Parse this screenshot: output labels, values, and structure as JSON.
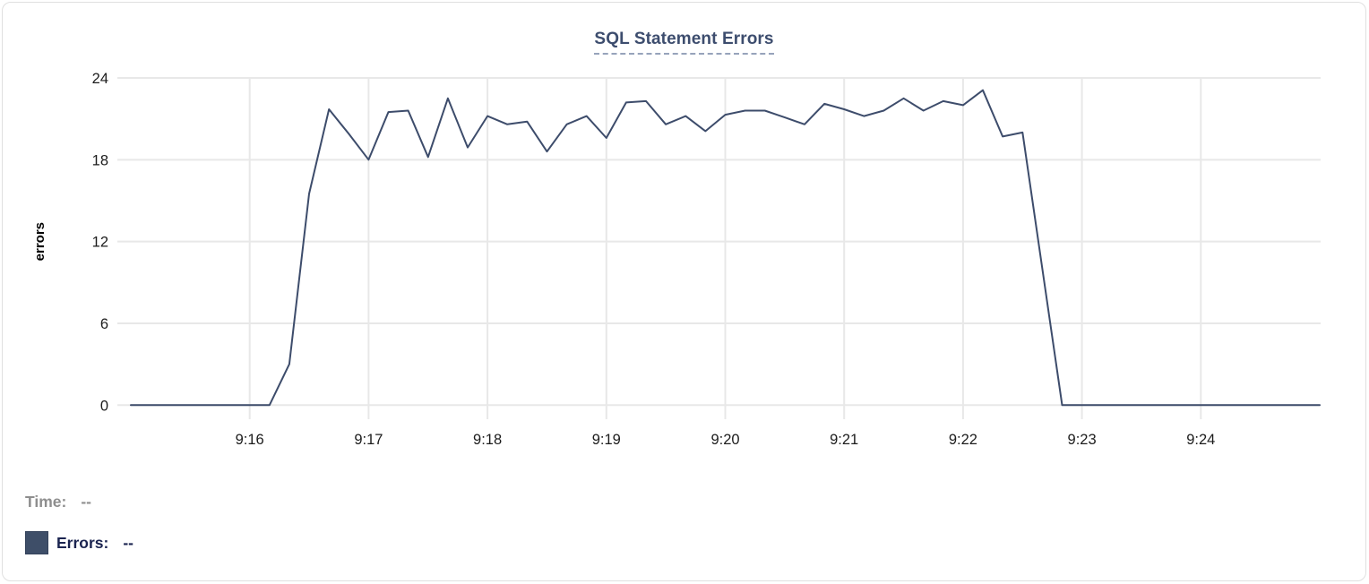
{
  "title": {
    "text": "SQL Statement Errors"
  },
  "colors": {
    "line": "#3d4c6b",
    "title": "#3d4d6e",
    "title_underline": "#97a3bb",
    "grid": "#e8e8e8",
    "tick_text": "#1c1c1c",
    "axis_label": "#000000",
    "time_legend_text": "#8e8e8e",
    "errors_legend_text": "#1b2450",
    "swatch": "#3e4e68",
    "card_border": "#e0e0e0"
  },
  "legend": {
    "time_label": "Time:",
    "time_value": "--",
    "errors_label": "Errors:",
    "errors_value": "--"
  },
  "chart_data": {
    "type": "line",
    "title": "SQL Statement Errors",
    "xlabel": "",
    "ylabel": "errors",
    "ylim": [
      0,
      24
    ],
    "y_ticks": [
      0,
      6,
      12,
      18,
      24
    ],
    "x_tick_labels": [
      "9:16",
      "9:17",
      "9:18",
      "9:19",
      "9:20",
      "9:21",
      "9:22",
      "9:23",
      "9:24"
    ],
    "x_start": "9:15:00",
    "x_end": "9:25:00",
    "interval_seconds": 10,
    "grid": true,
    "legend_position": "bottom-left",
    "series": [
      {
        "name": "Errors",
        "color": "#3d4c6b",
        "x": [
          "9:15:00",
          "9:15:10",
          "9:15:20",
          "9:15:30",
          "9:15:40",
          "9:15:50",
          "9:16:00",
          "9:16:10",
          "9:16:20",
          "9:16:30",
          "9:16:40",
          "9:16:50",
          "9:17:00",
          "9:17:10",
          "9:17:20",
          "9:17:30",
          "9:17:40",
          "9:17:50",
          "9:18:00",
          "9:18:10",
          "9:18:20",
          "9:18:30",
          "9:18:40",
          "9:18:50",
          "9:19:00",
          "9:19:10",
          "9:19:20",
          "9:19:30",
          "9:19:40",
          "9:19:50",
          "9:20:00",
          "9:20:10",
          "9:20:20",
          "9:20:30",
          "9:20:40",
          "9:20:50",
          "9:21:00",
          "9:21:10",
          "9:21:20",
          "9:21:30",
          "9:21:40",
          "9:21:50",
          "9:22:00",
          "9:22:10",
          "9:22:20",
          "9:22:30",
          "9:22:40",
          "9:22:50",
          "9:23:00",
          "9:23:10",
          "9:23:20",
          "9:23:30",
          "9:23:40",
          "9:23:50",
          "9:24:00",
          "9:24:10",
          "9:24:20",
          "9:24:30",
          "9:24:40",
          "9:24:50",
          "9:25:00"
        ],
        "values": [
          0,
          0,
          0,
          0,
          0,
          0,
          0,
          0,
          3,
          15.5,
          21.7,
          19.9,
          18,
          21.5,
          21.6,
          18.2,
          22.5,
          18.9,
          21.2,
          20.6,
          20.8,
          18.6,
          20.6,
          21.2,
          19.6,
          22.2,
          22.3,
          20.6,
          21.2,
          20.1,
          21.3,
          21.6,
          21.6,
          21.1,
          20.6,
          22.1,
          21.7,
          21.2,
          21.6,
          22.5,
          21.6,
          22.3,
          22,
          23.1,
          19.7,
          20,
          10,
          0,
          0,
          0,
          0,
          0,
          0,
          0,
          0,
          0,
          0,
          0,
          0,
          0,
          0
        ]
      }
    ]
  }
}
